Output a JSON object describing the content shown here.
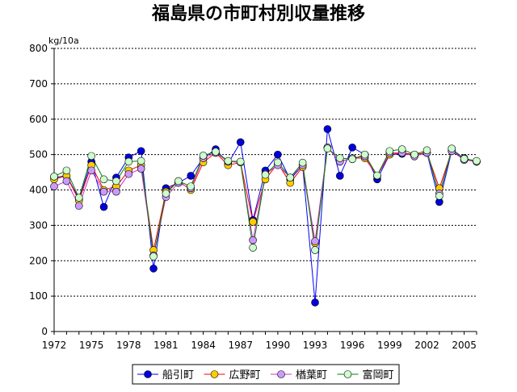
{
  "chart_data": {
    "type": "line",
    "title": "福島県の市町村別収量推移",
    "ylabel": "kg/10a",
    "xlabel": "",
    "ylim": [
      0,
      800
    ],
    "yticks": [
      0,
      100,
      200,
      300,
      400,
      500,
      600,
      700,
      800
    ],
    "xlim": [
      1972,
      2006
    ],
    "xticks": [
      1972,
      1975,
      1978,
      1981,
      1984,
      1987,
      1990,
      1993,
      1996,
      1999,
      2002,
      2005
    ],
    "grid": true,
    "legend": "bottom",
    "x": [
      1972,
      1973,
      1974,
      1975,
      1976,
      1977,
      1978,
      1979,
      1980,
      1981,
      1982,
      1983,
      1984,
      1985,
      1986,
      1987,
      1988,
      1989,
      1990,
      1991,
      1992,
      1993,
      1994,
      1995,
      1996,
      1997,
      1998,
      1999,
      2000,
      2001,
      2002,
      2003,
      2004,
      2005,
      2006
    ],
    "series": [
      {
        "name": "船引町",
        "color": "#0000ff",
        "marker_fill": "#0000dd",
        "values": [
          435,
          440,
          375,
          480,
          352,
          435,
          492,
          510,
          178,
          405,
          420,
          440,
          490,
          515,
          475,
          535,
          315,
          455,
          500,
          430,
          470,
          82,
          572,
          440,
          520,
          500,
          430,
          500,
          502,
          500,
          505,
          366,
          510,
          490,
          480
        ]
      },
      {
        "name": "広野町",
        "color": "#ff0000",
        "marker_fill": "#ffcc00",
        "values": [
          430,
          440,
          370,
          470,
          400,
          410,
          455,
          470,
          230,
          395,
          425,
          400,
          478,
          505,
          470,
          478,
          310,
          430,
          475,
          420,
          465,
          250,
          520,
          480,
          490,
          490,
          440,
          500,
          505,
          500,
          505,
          405,
          510,
          485,
          480
        ]
      },
      {
        "name": "楢葉町",
        "color": "#cc33cc",
        "marker_fill": "#cc99ff",
        "values": [
          410,
          425,
          355,
          455,
          395,
          395,
          445,
          460,
          215,
          380,
          420,
          405,
          490,
          505,
          480,
          478,
          258,
          445,
          470,
          435,
          470,
          255,
          520,
          480,
          490,
          495,
          440,
          505,
          505,
          495,
          505,
          390,
          510,
          485,
          480
        ]
      },
      {
        "name": "富岡町",
        "color": "#008000",
        "marker_fill": "#ccffcc",
        "values": [
          438,
          455,
          378,
          496,
          430,
          425,
          480,
          482,
          212,
          390,
          425,
          410,
          497,
          508,
          482,
          480,
          237,
          443,
          478,
          435,
          477,
          230,
          517,
          490,
          487,
          500,
          441,
          510,
          515,
          500,
          512,
          383,
          517,
          488,
          482
        ]
      }
    ]
  }
}
